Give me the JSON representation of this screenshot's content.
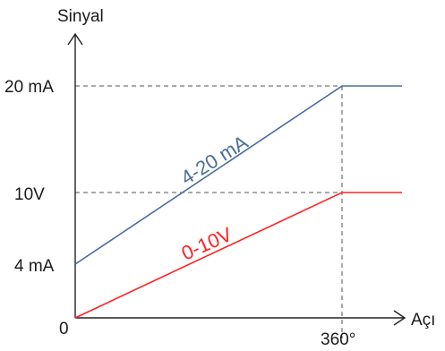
{
  "chart_data": {
    "type": "line",
    "ylabel": "Sinyal",
    "xlabel": "Açı",
    "origin_label": "0",
    "x_tick_labels": [
      "360°"
    ],
    "y_tick_labels": [
      "20 mA",
      "10V",
      "4 mA"
    ],
    "grid": false,
    "series": [
      {
        "name": "4-20 mA",
        "color": "#4a6e9b",
        "x": [
          "0",
          "360°",
          "end"
        ],
        "y": [
          "4 mA",
          "20 mA",
          "20 mA"
        ]
      },
      {
        "name": "0-10V",
        "color": "#ff2020",
        "x": [
          "0",
          "360°",
          "end"
        ],
        "y": [
          "0",
          "10V",
          "10V"
        ]
      }
    ],
    "annotations": [
      "4-20 mA",
      "0-10V"
    ]
  }
}
